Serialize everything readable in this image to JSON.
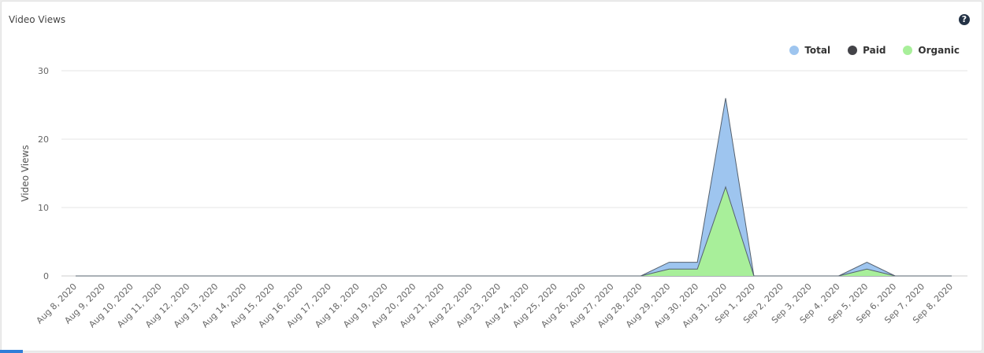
{
  "widget": {
    "title": "Video Views",
    "help_icon": "question-circle-icon",
    "help_glyph": "?"
  },
  "chart_data": {
    "type": "area",
    "title": "",
    "xlabel": "",
    "ylabel": "Video Views",
    "ylim": [
      0,
      30
    ],
    "yticks": [
      0,
      10,
      20,
      30
    ],
    "grid": true,
    "legend_position": "top-right",
    "categories": [
      "Aug 8, 2020",
      "Aug 9, 2020",
      "Aug 10, 2020",
      "Aug 11, 2020",
      "Aug 12, 2020",
      "Aug 13, 2020",
      "Aug 14, 2020",
      "Aug 15, 2020",
      "Aug 16, 2020",
      "Aug 17, 2020",
      "Aug 18, 2020",
      "Aug 19, 2020",
      "Aug 20, 2020",
      "Aug 21, 2020",
      "Aug 22, 2020",
      "Aug 23, 2020",
      "Aug 24, 2020",
      "Aug 25, 2020",
      "Aug 26, 2020",
      "Aug 27, 2020",
      "Aug 28, 2020",
      "Aug 29, 2020",
      "Aug 30, 2020",
      "Aug 31, 2020",
      "Sep 1, 2020",
      "Sep 2, 2020",
      "Sep 3, 2020",
      "Sep 4, 2020",
      "Sep 5, 2020",
      "Sep 6, 2020",
      "Sep 7, 2020",
      "Sep 8, 2020"
    ],
    "series": [
      {
        "name": "Total",
        "color": "#9ec5ef",
        "values": [
          0,
          0,
          0,
          0,
          0,
          0,
          0,
          0,
          0,
          0,
          0,
          0,
          0,
          0,
          0,
          0,
          0,
          0,
          0,
          0,
          0,
          2,
          2,
          26,
          0,
          0,
          0,
          0,
          2,
          0,
          0,
          0
        ]
      },
      {
        "name": "Paid",
        "color": "#434348",
        "values": [
          0,
          0,
          0,
          0,
          0,
          0,
          0,
          0,
          0,
          0,
          0,
          0,
          0,
          0,
          0,
          0,
          0,
          0,
          0,
          0,
          0,
          0,
          0,
          0,
          0,
          0,
          0,
          0,
          0,
          0,
          0,
          0
        ]
      },
      {
        "name": "Organic",
        "color": "#a8ef9a",
        "values": [
          0,
          0,
          0,
          0,
          0,
          0,
          0,
          0,
          0,
          0,
          0,
          0,
          0,
          0,
          0,
          0,
          0,
          0,
          0,
          0,
          0,
          1,
          1,
          13,
          0,
          0,
          0,
          0,
          1,
          0,
          0,
          0
        ]
      }
    ]
  }
}
